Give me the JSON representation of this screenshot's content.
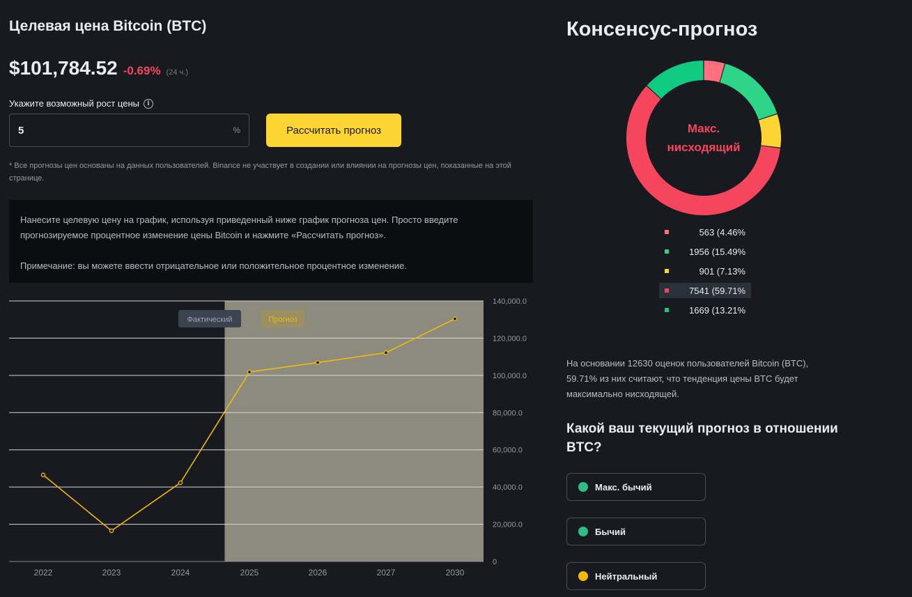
{
  "header": {
    "title": "Целевая цена Bitcoin (BTC)",
    "price": "$101,784.52",
    "change": "-0.69%",
    "period": "(24 ч.)"
  },
  "calculator": {
    "label": "Укажите возможный рост цены",
    "info_icon": "i",
    "input_value": "5",
    "unit": "%",
    "button_label": "Рассчитать прогноз",
    "disclaimer": "* Все прогнозы цен основаны на данных пользователей. Binance не участвует в создании или влиянии на прогнозы цен, показанные на этой странице."
  },
  "info_panel": {
    "text1": "Нанесите целевую цену на график, используя приведенный ниже график прогноза цен. Просто введите прогнозируемое процентное изменение цены Bitcoin и нажмите «Рассчитать прогноз».",
    "text2": "Примечание: вы можете ввести отрицательное или положительное процентное изменение."
  },
  "chart_data": {
    "type": "line",
    "categories": [
      "2022",
      "2023",
      "2024",
      "2025",
      "2026",
      "2027",
      "2030"
    ],
    "series": [
      {
        "values": [
          46500,
          16500,
          42300,
          101800,
          106900,
          112200,
          130400
        ]
      }
    ],
    "forecast_start_index": 3,
    "legend": [
      "Фактический",
      "Прогноз"
    ],
    "y_ticks": [
      "0",
      "20,000.0",
      "40,000.0",
      "60,000.0",
      "80,000.0",
      "100,000.0",
      "120,000.0",
      "140,000.0"
    ],
    "ylim": [
      0,
      140000
    ],
    "grid": true,
    "colors": {
      "line": "#f0b90b",
      "forecast_bg": "#8c8b7e",
      "grid": "#d6d6d6"
    }
  },
  "consensus": {
    "title": "Консенсус-прогноз",
    "center_line1": "Макс.",
    "center_line2": "нисходящий",
    "segments": [
      {
        "label": "563 (4.46%",
        "value": 4.46,
        "color": "#ff707e"
      },
      {
        "label": "1956 (15.49%",
        "value": 15.49,
        "color": "#2ed589"
      },
      {
        "label": "901 (7.13%",
        "value": 7.13,
        "color": "#fcd535"
      },
      {
        "label": "7541 (59.71%",
        "value": 59.71,
        "color": "#f6465d"
      },
      {
        "label": "1669 (13.21%",
        "value": 13.21,
        "color": "#0ecb81"
      }
    ],
    "summary": "На основании 12630 оценок пользователей Bitcoin (BTC), 59.71% из них считают, что тенденция цены BTC будет максимально нисходящей.",
    "question": "Какой ваш текущий прогноз в отношении BTC?",
    "votes": [
      {
        "label": "Макс. бычий",
        "color": "#2ebd85"
      },
      {
        "label": "Бычий",
        "color": "#2ebd85"
      },
      {
        "label": "Нейтральный",
        "color": "#f0b90b"
      }
    ]
  }
}
